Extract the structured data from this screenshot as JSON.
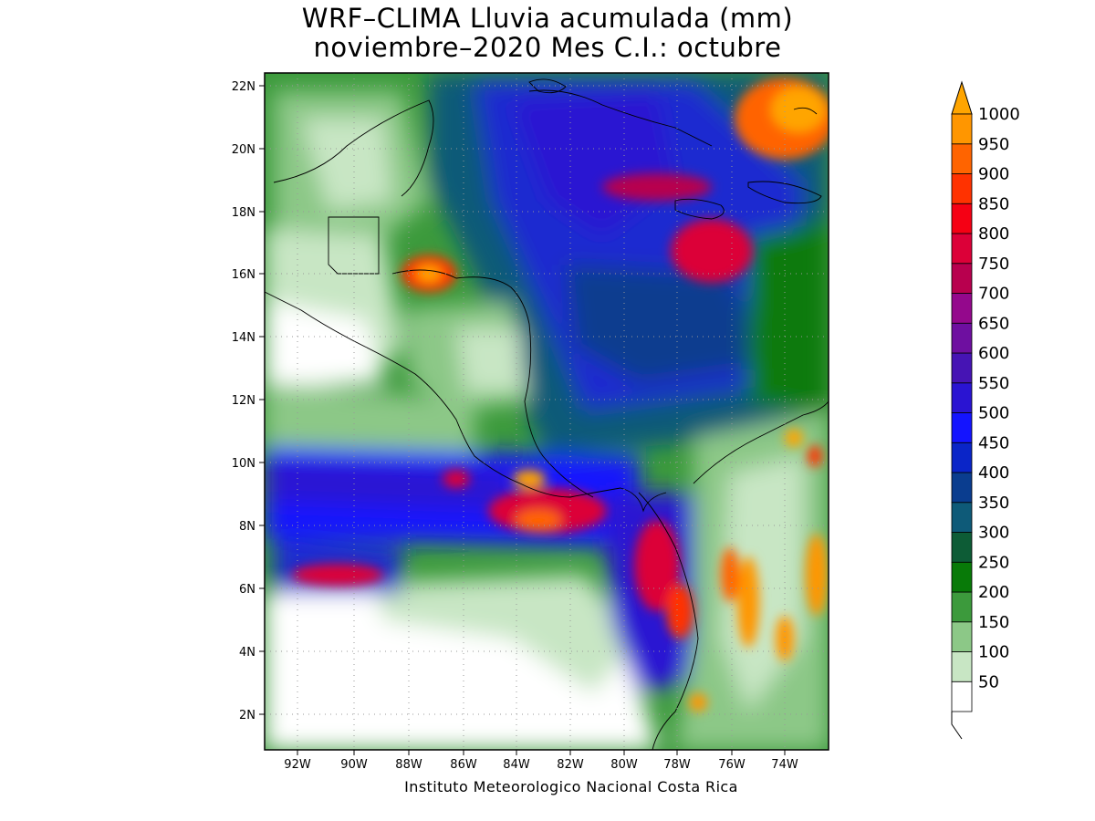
{
  "title_line1": "WRF–CLIMA Lluvia acumulada (mm)",
  "title_line2": "noviembre–2020 Mes C.I.: octubre",
  "credit": "Instituto Meteorologico Nacional Costa Rica",
  "lat_labels": [
    "22N",
    "20N",
    "18N",
    "16N",
    "14N",
    "12N",
    "10N",
    "8N",
    "6N",
    "4N",
    "2N"
  ],
  "lon_labels": [
    "92W",
    "90W",
    "88W",
    "86W",
    "84W",
    "82W",
    "80W",
    "78W",
    "76W",
    "74W"
  ],
  "colorbar": {
    "labels": [
      "1000",
      "950",
      "900",
      "850",
      "800",
      "750",
      "700",
      "650",
      "600",
      "550",
      "500",
      "450",
      "400",
      "350",
      "300",
      "250",
      "200",
      "150",
      "100",
      "50"
    ],
    "colors": [
      "#ffffff",
      "#c8e6c4",
      "#8cc887",
      "#3c9a3c",
      "#087a08",
      "#0d5c36",
      "#0e5a78",
      "#0a3d8f",
      "#0a25c8",
      "#1414ff",
      "#2a14d2",
      "#4614b4",
      "#6e0fa0",
      "#94088c",
      "#b8004e",
      "#dc0038",
      "#f50014",
      "#ff3200",
      "#ff6400",
      "#ff9600",
      "#ffa500"
    ],
    "overflow_color": "#ffa500"
  }
}
